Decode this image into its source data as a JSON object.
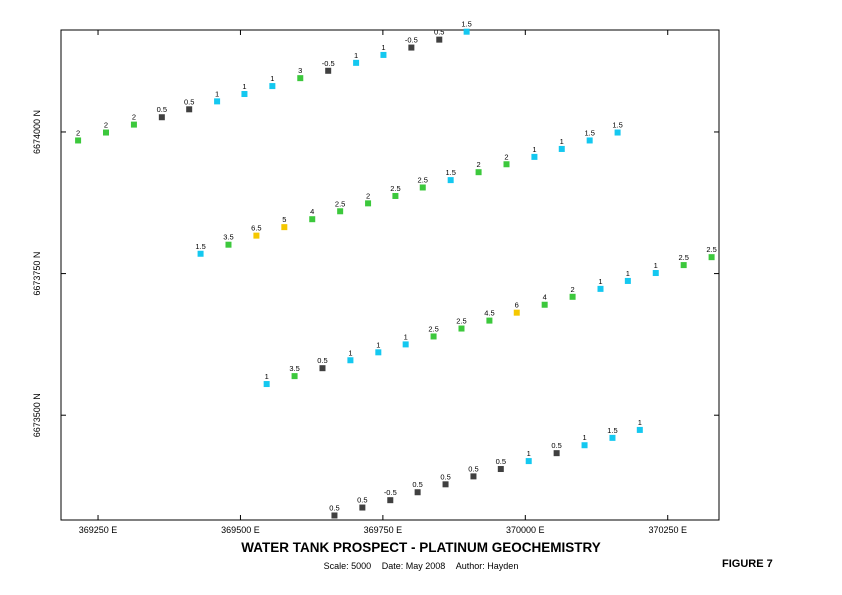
{
  "title": "WATER TANK PROSPECT - PLATINUM GEOCHEMISTRY",
  "scale_text": "Scale: 5000",
  "date_text": "Date: May 2008",
  "author_text": "Author: Hayden",
  "figure_label": "FIGURE 7",
  "chart_data": {
    "type": "scatter",
    "title": "WATER TANK PROSPECT - PLATINUM GEOCHEMISTRY",
    "xlabel": "",
    "ylabel": "",
    "xlim": [
      369185,
      370340
    ],
    "ylim": [
      6673315,
      6674180
    ],
    "x_ticks": [
      {
        "value": 369250,
        "label": "369250 E"
      },
      {
        "value": 369500,
        "label": "369500 E"
      },
      {
        "value": 369750,
        "label": "369750 E"
      },
      {
        "value": 370000,
        "label": "370000 E"
      },
      {
        "value": 370250,
        "label": "370250 E"
      }
    ],
    "y_ticks": [
      {
        "value": 6673500,
        "label": "6673500 N"
      },
      {
        "value": 6673750,
        "label": "6673750 N"
      },
      {
        "value": 6674000,
        "label": "6674000 N"
      }
    ],
    "grid": false,
    "legend": "none",
    "class_colors": {
      "low": "#404040",
      "mid": "#14c8f0",
      "high": "#3cc83c",
      "very_high": "#f5c800"
    },
    "lines": [
      {
        "points": [
          {
            "x": 369215,
            "y": 6673985,
            "value": "2",
            "class": "high"
          },
          {
            "x": 369264,
            "y": 6673999,
            "value": "2",
            "class": "high"
          },
          {
            "x": 369313,
            "y": 6674013,
            "value": "2",
            "class": "high"
          },
          {
            "x": 369362,
            "y": 6674026,
            "value": "0.5",
            "class": "low"
          },
          {
            "x": 369410,
            "y": 6674040,
            "value": "0.5",
            "class": "low"
          },
          {
            "x": 369459,
            "y": 6674054,
            "value": "1",
            "class": "mid"
          },
          {
            "x": 369507,
            "y": 6674067,
            "value": "1",
            "class": "mid"
          },
          {
            "x": 369556,
            "y": 6674081,
            "value": "1",
            "class": "mid"
          },
          {
            "x": 369605,
            "y": 6674095,
            "value": "3",
            "class": "high"
          },
          {
            "x": 369654,
            "y": 6674108,
            "value": "-0.5",
            "class": "low"
          },
          {
            "x": 369703,
            "y": 6674122,
            "value": "1",
            "class": "mid"
          },
          {
            "x": 369751,
            "y": 6674136,
            "value": "1",
            "class": "mid"
          },
          {
            "x": 369800,
            "y": 6674149,
            "value": "-0.5",
            "class": "low"
          },
          {
            "x": 369849,
            "y": 6674163,
            "value": "0.5",
            "class": "low"
          },
          {
            "x": 369897,
            "y": 6674177,
            "value": "1.5",
            "class": "mid"
          }
        ]
      },
      {
        "points": [
          {
            "x": 369430,
            "y": 6673785,
            "value": "1.5",
            "class": "mid"
          },
          {
            "x": 369479,
            "y": 6673801,
            "value": "3.5",
            "class": "high"
          },
          {
            "x": 369528,
            "y": 6673817,
            "value": "6.5",
            "class": "very_high"
          },
          {
            "x": 369577,
            "y": 6673832,
            "value": "5",
            "class": "very_high"
          },
          {
            "x": 369626,
            "y": 6673846,
            "value": "4",
            "class": "high"
          },
          {
            "x": 369675,
            "y": 6673860,
            "value": "2.5",
            "class": "high"
          },
          {
            "x": 369724,
            "y": 6673874,
            "value": "2",
            "class": "high"
          },
          {
            "x": 369772,
            "y": 6673887,
            "value": "2.5",
            "class": "high"
          },
          {
            "x": 369820,
            "y": 6673902,
            "value": "2.5",
            "class": "high"
          },
          {
            "x": 369869,
            "y": 6673915,
            "value": "1.5",
            "class": "mid"
          },
          {
            "x": 369918,
            "y": 6673929,
            "value": "2",
            "class": "high"
          },
          {
            "x": 369967,
            "y": 6673943,
            "value": "2",
            "class": "high"
          },
          {
            "x": 370016,
            "y": 6673956,
            "value": "1",
            "class": "mid"
          },
          {
            "x": 370064,
            "y": 6673970,
            "value": "1",
            "class": "mid"
          },
          {
            "x": 370113,
            "y": 6673985,
            "value": "1.5",
            "class": "mid"
          },
          {
            "x": 370162,
            "y": 6673999,
            "value": "1.5",
            "class": "mid"
          }
        ]
      },
      {
        "points": [
          {
            "x": 369546,
            "y": 6673555,
            "value": "1",
            "class": "mid"
          },
          {
            "x": 369595,
            "y": 6673569,
            "value": "3.5",
            "class": "high"
          },
          {
            "x": 369644,
            "y": 6673583,
            "value": "0.5",
            "class": "low"
          },
          {
            "x": 369693,
            "y": 6673597,
            "value": "1",
            "class": "mid"
          },
          {
            "x": 369742,
            "y": 6673611,
            "value": "1",
            "class": "mid"
          },
          {
            "x": 369790,
            "y": 6673625,
            "value": "1",
            "class": "mid"
          },
          {
            "x": 369839,
            "y": 6673639,
            "value": "2.5",
            "class": "high"
          },
          {
            "x": 369888,
            "y": 6673653,
            "value": "2.5",
            "class": "high"
          },
          {
            "x": 369937,
            "y": 6673667,
            "value": "4.5",
            "class": "high"
          },
          {
            "x": 369985,
            "y": 6673681,
            "value": "6",
            "class": "very_high"
          },
          {
            "x": 370034,
            "y": 6673695,
            "value": "4",
            "class": "high"
          },
          {
            "x": 370083,
            "y": 6673709,
            "value": "2",
            "class": "high"
          },
          {
            "x": 370132,
            "y": 6673723,
            "value": "1",
            "class": "mid"
          },
          {
            "x": 370180,
            "y": 6673737,
            "value": "1",
            "class": "mid"
          },
          {
            "x": 370229,
            "y": 6673751,
            "value": "1",
            "class": "mid"
          },
          {
            "x": 370278,
            "y": 6673765,
            "value": "2.5",
            "class": "high"
          },
          {
            "x": 370327,
            "y": 6673779,
            "value": "2.5",
            "class": "high"
          }
        ]
      },
      {
        "points": [
          {
            "x": 369665,
            "y": 6673323,
            "value": "0.5",
            "class": "low"
          },
          {
            "x": 369714,
            "y": 6673337,
            "value": "0.5",
            "class": "low"
          },
          {
            "x": 369763,
            "y": 6673350,
            "value": "-0.5",
            "class": "low"
          },
          {
            "x": 369811,
            "y": 6673364,
            "value": "0.5",
            "class": "low"
          },
          {
            "x": 369860,
            "y": 6673378,
            "value": "0.5",
            "class": "low"
          },
          {
            "x": 369909,
            "y": 6673392,
            "value": "0.5",
            "class": "low"
          },
          {
            "x": 369957,
            "y": 6673405,
            "value": "0.5",
            "class": "low"
          },
          {
            "x": 370006,
            "y": 6673419,
            "value": "1",
            "class": "mid"
          },
          {
            "x": 370055,
            "y": 6673433,
            "value": "0.5",
            "class": "low"
          },
          {
            "x": 370104,
            "y": 6673447,
            "value": "1",
            "class": "mid"
          },
          {
            "x": 370153,
            "y": 6673460,
            "value": "1.5",
            "class": "mid"
          },
          {
            "x": 370201,
            "y": 6673474,
            "value": "1",
            "class": "mid"
          }
        ]
      }
    ]
  }
}
